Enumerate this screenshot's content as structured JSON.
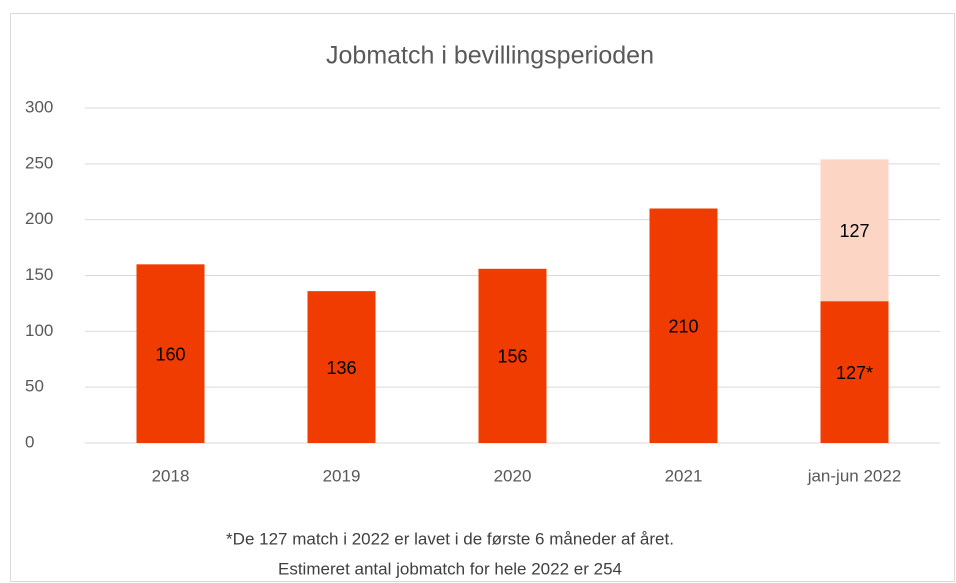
{
  "chart_data": {
    "type": "stacked_bar",
    "title": "Jobmatch i bevillingsperioden",
    "categories": [
      "2018",
      "2019",
      "2020",
      "2021",
      "jan-jun 2022"
    ],
    "series": [
      {
        "color": "#f03c00",
        "values": [
          160,
          136,
          156,
          210,
          127
        ],
        "value_labels": [
          "160",
          "136",
          "156",
          "210",
          "127*"
        ]
      },
      {
        "color": "#fdd5c5",
        "values": [
          null,
          null,
          null,
          null,
          127
        ],
        "value_labels": [
          null,
          null,
          null,
          null,
          "127"
        ]
      }
    ],
    "ylim": [
      0,
      300
    ],
    "yticks": [
      0,
      50,
      100,
      150,
      200,
      250,
      300
    ],
    "grid": true,
    "notes": [
      "*De 127 match i 2022 er lavet i de første 6 måneder af året.",
      "Estimeret antal jobmatch for hele 2022 er 254"
    ]
  }
}
